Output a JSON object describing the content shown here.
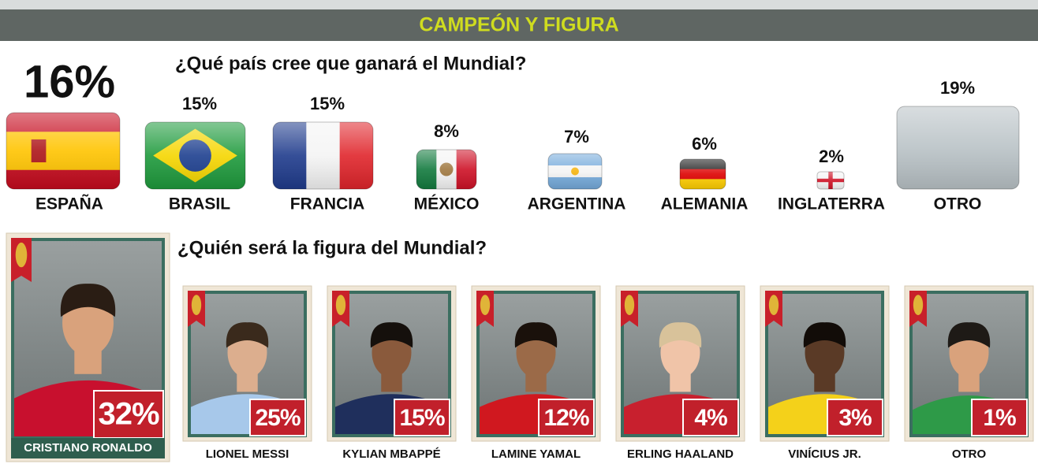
{
  "header": {
    "title": "CAMPEÓN Y FIGURA"
  },
  "countries": {
    "question": "¿Qué país cree que ganará el Mundial?",
    "items": [
      {
        "name": "ESPAÑA",
        "percent": "16%"
      },
      {
        "name": "BRASIL",
        "percent": "15%"
      },
      {
        "name": "FRANCIA",
        "percent": "15%"
      },
      {
        "name": "MÉXICO",
        "percent": "8%"
      },
      {
        "name": "ARGENTINA",
        "percent": "7%"
      },
      {
        "name": "ALEMANIA",
        "percent": "6%"
      },
      {
        "name": "INGLATERRA",
        "percent": "2%"
      },
      {
        "name": "OTRO",
        "percent": "19%"
      }
    ]
  },
  "players": {
    "question": "¿Quién será la figura del Mundial?",
    "items": [
      {
        "name": "CRISTIANO RONALDO",
        "percent": "32%"
      },
      {
        "name": "LIONEL MESSI",
        "percent": "25%"
      },
      {
        "name": "KYLIAN MBAPPÉ",
        "percent": "15%"
      },
      {
        "name": "LAMINE YAMAL",
        "percent": "12%"
      },
      {
        "name": "ERLING HAALAND",
        "percent": "4%"
      },
      {
        "name": "VINÍCIUS JR.",
        "percent": "3%"
      },
      {
        "name": "OTRO",
        "percent": "1%"
      }
    ]
  }
}
